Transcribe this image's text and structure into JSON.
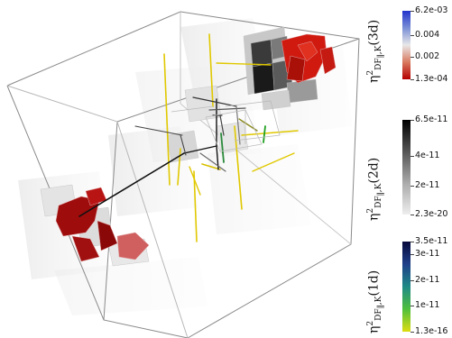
{
  "colorbars": [
    {
      "id": "3d",
      "label": {
        "sym": "η",
        "sup": "2",
        "sub": "DF",
        "sub2": "∥",
        "sub3": ",K",
        "tag": "(3d)"
      },
      "gradient": [
        "#2233cc",
        "#7a8fd6",
        "#e8e8e8",
        "#d97a60",
        "#b40000"
      ],
      "ticks": [
        {
          "text": "6.2e-03",
          "pos": 0.0
        },
        {
          "text": "0.004",
          "pos": 0.36
        },
        {
          "text": "0.002",
          "pos": 0.68
        },
        {
          "text": "1.3e-04",
          "pos": 1.0
        }
      ]
    },
    {
      "id": "2d",
      "label": {
        "sym": "η",
        "sup": "2",
        "sub": "DF",
        "sub2": "∥",
        "sub3": ",K",
        "tag": "(2d)"
      },
      "gradient": [
        "#000000",
        "#555555",
        "#aaaaaa",
        "#eeeeee"
      ],
      "ticks": [
        {
          "text": "6.5e-11",
          "pos": 0.0
        },
        {
          "text": "4e-11",
          "pos": 0.38
        },
        {
          "text": "2e-11",
          "pos": 0.69
        },
        {
          "text": "2.3e-20",
          "pos": 1.0
        }
      ]
    },
    {
      "id": "1d",
      "label": {
        "sym": "η",
        "sup": "2",
        "sub": "DF",
        "sub2": "∥",
        "sub3": ",K",
        "tag": "(1d)"
      },
      "gradient": [
        "#06093a",
        "#1f3f8a",
        "#1f8a86",
        "#4fbf3c",
        "#dddd10"
      ],
      "ticks": [
        {
          "text": "3.5e-11",
          "pos": 0.0
        },
        {
          "text": "3e-11",
          "pos": 0.14
        },
        {
          "text": "2e-11",
          "pos": 0.43
        },
        {
          "text": "1e-11",
          "pos": 0.72
        },
        {
          "text": "1.3e-16",
          "pos": 1.0
        }
      ]
    }
  ]
}
